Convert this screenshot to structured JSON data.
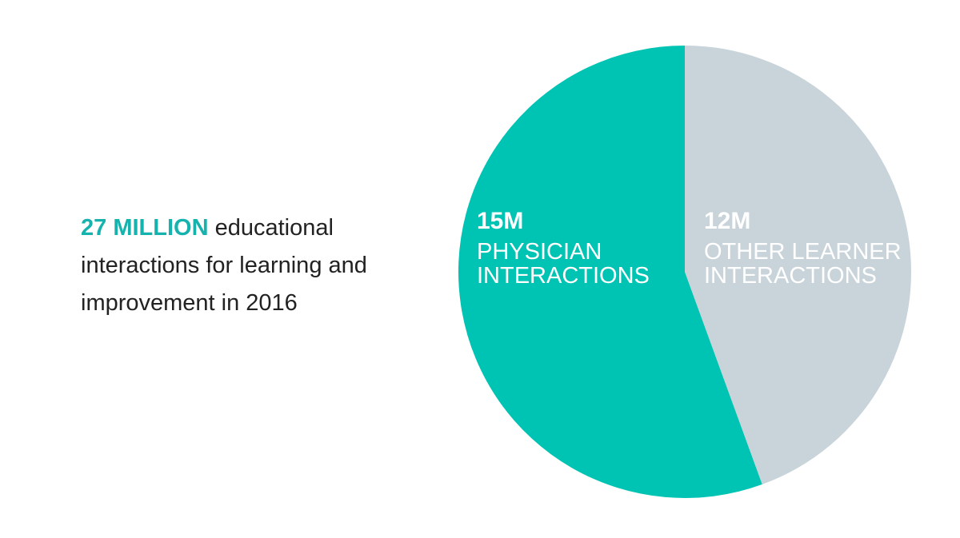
{
  "chart_data": {
    "type": "pie",
    "annotation": {
      "highlight": "27 MILLION",
      "text": "educational interactions for learning and improvement in 2016",
      "highlight_color": "#16b2ad"
    },
    "categories": [
      "PHYSICIAN INTERACTIONS",
      "OTHER LEARNER INTERACTIONS"
    ],
    "values": [
      15000000,
      12000000
    ],
    "value_labels": [
      "15M",
      "12M"
    ],
    "colors": [
      "#00c4b3",
      "#c8d4da"
    ]
  }
}
